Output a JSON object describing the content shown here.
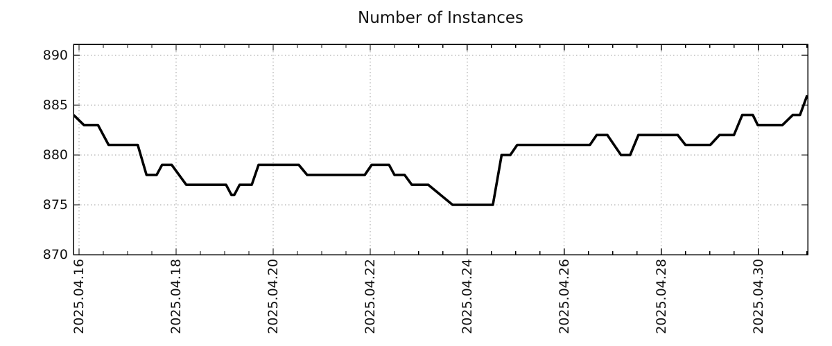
{
  "chart_data": {
    "type": "line",
    "title": "Number of Instances",
    "x_axis": {
      "epoch_label": "days since 2025-04-16 00:00",
      "range_days": [
        -0.115,
        15.02
      ],
      "major_tick_days": [
        0,
        2,
        4,
        6,
        8,
        10,
        12,
        14
      ],
      "tick_labels": [
        "2025.04.16",
        "2025.04.18",
        "2025.04.20",
        "2025.04.22",
        "2025.04.24",
        "2025.04.26",
        "2025.04.28",
        "2025.04.30"
      ],
      "minor_tick_interval_days": 0.5
    },
    "y_axis": {
      "ticks": [
        870,
        875,
        880,
        885,
        890
      ],
      "range": [
        870,
        891.1
      ]
    },
    "grid": {
      "visible": true,
      "style": "dotted",
      "color": "#9c9c9c"
    },
    "legend": {
      "visible": false
    },
    "series": [
      {
        "name": "Number of Instances",
        "color": "#000000",
        "line_width": 3.6,
        "points": [
          [
            -0.11,
            884
          ],
          [
            0.1,
            883
          ],
          [
            0.39,
            883
          ],
          [
            0.61,
            881
          ],
          [
            1.21,
            881
          ],
          [
            1.39,
            878
          ],
          [
            1.6,
            878
          ],
          [
            1.71,
            879
          ],
          [
            1.91,
            879
          ],
          [
            2.21,
            877
          ],
          [
            3.03,
            877
          ],
          [
            3.14,
            876
          ],
          [
            3.2,
            876
          ],
          [
            3.31,
            877
          ],
          [
            3.56,
            877
          ],
          [
            3.7,
            879
          ],
          [
            4.53,
            879
          ],
          [
            4.7,
            878
          ],
          [
            5.89,
            878
          ],
          [
            6.03,
            879
          ],
          [
            6.39,
            879
          ],
          [
            6.5,
            878
          ],
          [
            6.71,
            878
          ],
          [
            6.86,
            877
          ],
          [
            7.2,
            877
          ],
          [
            7.7,
            875
          ],
          [
            8.53,
            875
          ],
          [
            8.71,
            880
          ],
          [
            8.89,
            880
          ],
          [
            9.03,
            881
          ],
          [
            10.53,
            881
          ],
          [
            10.67,
            882
          ],
          [
            10.89,
            882
          ],
          [
            11.17,
            880
          ],
          [
            11.36,
            880
          ],
          [
            11.53,
            882
          ],
          [
            12.34,
            882
          ],
          [
            12.5,
            881
          ],
          [
            13.01,
            881
          ],
          [
            13.2,
            882
          ],
          [
            13.5,
            882
          ],
          [
            13.67,
            884
          ],
          [
            13.89,
            884
          ],
          [
            13.99,
            883
          ],
          [
            14.5,
            883
          ],
          [
            14.71,
            884
          ],
          [
            14.86,
            884
          ],
          [
            15.01,
            886
          ]
        ]
      }
    ]
  },
  "colors": {
    "background": "#ffffff",
    "axis": "#000000",
    "text": "#111111",
    "grid": "#9c9c9c",
    "line": "#000000"
  }
}
